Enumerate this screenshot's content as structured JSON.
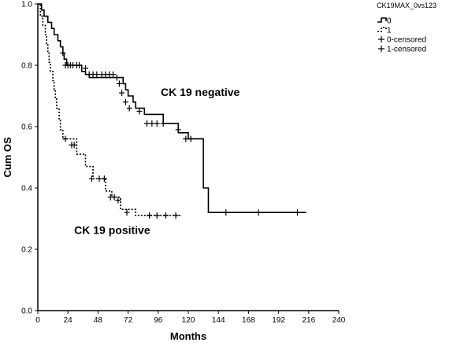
{
  "chart_data": {
    "type": "line",
    "xlabel": "Months",
    "ylabel": "Cum OS",
    "xlim": [
      0,
      240
    ],
    "ylim": [
      0.0,
      1.0
    ],
    "x_ticks": [
      "0",
      "24",
      "48",
      "72",
      "96",
      "120",
      "144",
      "168",
      "192",
      "216",
      "240"
    ],
    "y_ticks": [
      "0.0",
      "0.2",
      "0.4",
      "0.6",
      "0.8",
      "1.0"
    ],
    "grid": false,
    "legend_title": "CK19MAX_0vs123",
    "legend_placement": "top-right",
    "legend_entries": [
      "0",
      "1",
      "0-censored",
      "1-censored"
    ],
    "annotations": [
      {
        "text": "CK 19 negative",
        "x": 98,
        "y": 0.7
      },
      {
        "text": "CK 19 positive",
        "x": 29,
        "y": 0.25
      }
    ],
    "series": [
      {
        "name": "0",
        "line_style": "solid",
        "steps": [
          [
            0,
            1.0
          ],
          [
            3,
            0.98
          ],
          [
            5,
            0.96
          ],
          [
            8,
            0.94
          ],
          [
            11,
            0.92
          ],
          [
            13,
            0.9
          ],
          [
            16,
            0.88
          ],
          [
            18,
            0.86
          ],
          [
            20,
            0.84
          ],
          [
            21,
            0.82
          ],
          [
            23,
            0.8
          ],
          [
            35,
            0.78
          ],
          [
            38,
            0.77
          ],
          [
            41,
            0.76
          ],
          [
            68,
            0.74
          ],
          [
            70,
            0.72
          ],
          [
            72,
            0.7
          ],
          [
            76,
            0.68
          ],
          [
            78,
            0.66
          ],
          [
            85,
            0.64
          ],
          [
            100,
            0.61
          ],
          [
            112,
            0.58
          ],
          [
            120,
            0.56
          ],
          [
            132,
            0.4
          ],
          [
            136,
            0.32
          ],
          [
            214,
            0.32
          ]
        ],
        "censored": [
          [
            20,
            0.84
          ],
          [
            22,
            0.8
          ],
          [
            24,
            0.8
          ],
          [
            26,
            0.8
          ],
          [
            28,
            0.8
          ],
          [
            31,
            0.8
          ],
          [
            33,
            0.8
          ],
          [
            38,
            0.79
          ],
          [
            41,
            0.77
          ],
          [
            44,
            0.77
          ],
          [
            47,
            0.77
          ],
          [
            51,
            0.77
          ],
          [
            54,
            0.77
          ],
          [
            57,
            0.77
          ],
          [
            60,
            0.77
          ],
          [
            63,
            0.76
          ],
          [
            65,
            0.74
          ],
          [
            67,
            0.71
          ],
          [
            70,
            0.68
          ],
          [
            73,
            0.66
          ],
          [
            81,
            0.65
          ],
          [
            87,
            0.61
          ],
          [
            91,
            0.61
          ],
          [
            95,
            0.61
          ],
          [
            100,
            0.61
          ],
          [
            112,
            0.59
          ],
          [
            118,
            0.56
          ],
          [
            122,
            0.56
          ],
          [
            150,
            0.32
          ],
          [
            176,
            0.32
          ],
          [
            207,
            0.32
          ]
        ]
      },
      {
        "name": "1",
        "line_style": "dotted",
        "steps": [
          [
            0,
            1.0
          ],
          [
            2,
            0.96
          ],
          [
            4,
            0.93
          ],
          [
            6,
            0.9
          ],
          [
            7,
            0.87
          ],
          [
            8,
            0.84
          ],
          [
            9,
            0.81
          ],
          [
            10,
            0.78
          ],
          [
            12,
            0.75
          ],
          [
            13,
            0.72
          ],
          [
            14,
            0.69
          ],
          [
            15,
            0.66
          ],
          [
            17,
            0.62
          ],
          [
            18,
            0.59
          ],
          [
            20,
            0.56
          ],
          [
            31,
            0.51
          ],
          [
            38,
            0.47
          ],
          [
            44,
            0.43
          ],
          [
            54,
            0.39
          ],
          [
            59,
            0.37
          ],
          [
            66,
            0.33
          ],
          [
            78,
            0.31
          ],
          [
            115,
            0.31
          ]
        ],
        "censored": [
          [
            22,
            0.56
          ],
          [
            27,
            0.54
          ],
          [
            29,
            0.54
          ],
          [
            43,
            0.43
          ],
          [
            49,
            0.43
          ],
          [
            53,
            0.43
          ],
          [
            58,
            0.37
          ],
          [
            61,
            0.37
          ],
          [
            64,
            0.36
          ],
          [
            71,
            0.32
          ],
          [
            89,
            0.31
          ],
          [
            95,
            0.31
          ],
          [
            102,
            0.31
          ],
          [
            110,
            0.31
          ]
        ]
      }
    ]
  }
}
